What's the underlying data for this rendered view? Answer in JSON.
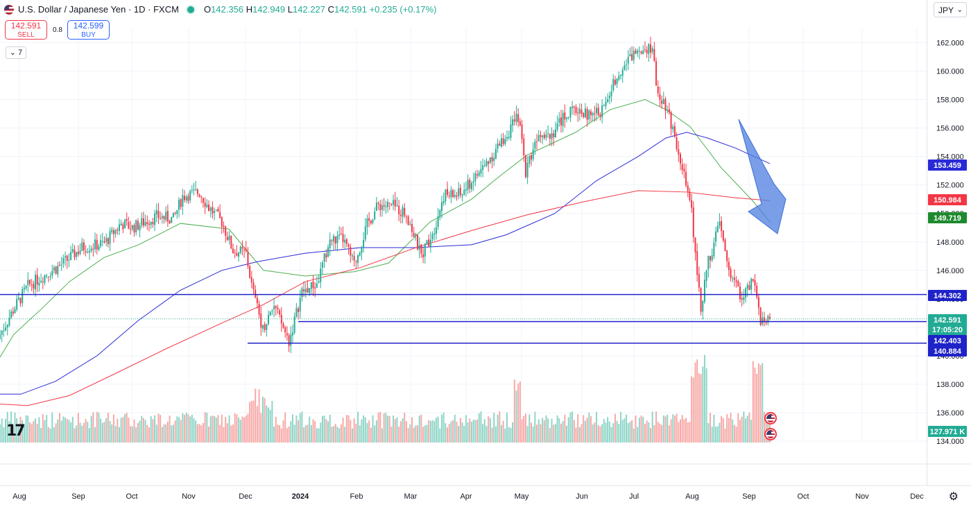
{
  "header": {
    "title": "U.S. Dollar / Japanese Yen · 1D · FXCM",
    "open_label": "O",
    "open": "142.356",
    "high_label": "H",
    "high": "142.949",
    "low_label": "L",
    "low": "142.227",
    "close_label": "C",
    "close": "142.591",
    "change": "+0.235 (+0.17%)"
  },
  "trade": {
    "sell_price": "142.591",
    "sell_label": "SELL",
    "buy_price": "142.599",
    "buy_label": "BUY",
    "spread": "0.8"
  },
  "indicators_toggle": "⌄ 7",
  "currency_menu": "JPY",
  "logo_text": "17",
  "settings_icon": "gear-icon",
  "colors": {
    "up": "#22ab94",
    "down": "#f23645",
    "ma_short": "#4caf50",
    "ma_mid": "#2929d8",
    "ma_long": "#f23645",
    "hline": "#1e22c8",
    "arrow": "#4d7fe0"
  },
  "chart_data": {
    "type": "candlestick",
    "instrument": "U.S. Dollar / Japanese Yen",
    "interval": "1D",
    "y_range": [
      134,
      162.7
    ],
    "y_ticks": [
      "162.000",
      "160.000",
      "158.000",
      "156.000",
      "154.000",
      "152.000",
      "150.000",
      "148.000",
      "146.000",
      "144.000",
      "142.000",
      "140.000",
      "138.000",
      "136.000",
      "134.000"
    ],
    "x_ticks": [
      "Aug",
      "Sep",
      "Oct",
      "Nov",
      "Dec",
      "2024",
      "Feb",
      "Mar",
      "Apr",
      "May",
      "Jun",
      "Jul",
      "Aug",
      "Sep",
      "Oct",
      "Nov",
      "Dec"
    ],
    "price_path": [
      [
        "2023-07-26",
        141.5
      ],
      [
        "2023-08-02",
        143.2
      ],
      [
        "2023-08-10",
        144.9
      ],
      [
        "2023-08-18",
        145.6
      ],
      [
        "2023-08-28",
        146.4
      ],
      [
        "2023-09-08",
        147.6
      ],
      [
        "2023-09-20",
        147.9
      ],
      [
        "2023-09-29",
        149.3
      ],
      [
        "2023-10-05",
        149.0
      ],
      [
        "2023-10-18",
        149.8
      ],
      [
        "2023-10-27",
        149.6
      ],
      [
        "2023-11-01",
        151.2
      ],
      [
        "2023-11-10",
        151.5
      ],
      [
        "2023-11-15",
        150.4
      ],
      [
        "2023-11-22",
        149.4
      ],
      [
        "2023-11-28",
        147.4
      ],
      [
        "2023-12-05",
        147.2
      ],
      [
        "2023-12-08",
        144.9
      ],
      [
        "2023-12-14",
        141.9
      ],
      [
        "2023-12-20",
        143.5
      ],
      [
        "2023-12-28",
        141.0
      ],
      [
        "2024-01-04",
        144.5
      ],
      [
        "2024-01-12",
        145.0
      ],
      [
        "2024-01-19",
        148.1
      ],
      [
        "2024-01-26",
        148.2
      ],
      [
        "2024-02-01",
        146.4
      ],
      [
        "2024-02-08",
        149.2
      ],
      [
        "2024-02-14",
        150.6
      ],
      [
        "2024-02-22",
        150.5
      ],
      [
        "2024-02-29",
        150.0
      ],
      [
        "2024-03-08",
        147.0
      ],
      [
        "2024-03-15",
        149.0
      ],
      [
        "2024-03-20",
        151.3
      ],
      [
        "2024-03-29",
        151.3
      ],
      [
        "2024-04-10",
        153.2
      ],
      [
        "2024-04-18",
        154.6
      ],
      [
        "2024-04-29",
        156.8
      ],
      [
        "2024-05-03",
        153.0
      ],
      [
        "2024-05-10",
        155.8
      ],
      [
        "2024-05-17",
        155.6
      ],
      [
        "2024-05-24",
        156.9
      ],
      [
        "2024-05-31",
        157.3
      ],
      [
        "2024-06-07",
        156.8
      ],
      [
        "2024-06-14",
        157.4
      ],
      [
        "2024-06-21",
        159.8
      ],
      [
        "2024-06-28",
        160.9
      ],
      [
        "2024-07-03",
        161.7
      ],
      [
        "2024-07-10",
        161.7
      ],
      [
        "2024-07-12",
        158.9
      ],
      [
        "2024-07-18",
        157.4
      ],
      [
        "2024-07-25",
        153.9
      ],
      [
        "2024-07-31",
        150.0
      ],
      [
        "2024-08-05",
        143.5
      ],
      [
        "2024-08-09",
        146.6
      ],
      [
        "2024-08-15",
        149.3
      ],
      [
        "2024-08-20",
        146.0
      ],
      [
        "2024-08-27",
        144.1
      ],
      [
        "2024-09-03",
        145.3
      ],
      [
        "2024-09-06",
        142.3
      ],
      [
        "2024-09-11",
        142.6
      ]
    ],
    "moving_averages": [
      {
        "values": [
          [
            141.5,
            143.3,
            145.2,
            146.9,
            147.8,
            149.3,
            148.9,
            146.0,
            145.6,
            145.9,
            146.5,
            149.4,
            151.0,
            152.6,
            154.1,
            155.7,
            157.3,
            158.0,
            156.1,
            150.9,
            149.4
          ]
        ]
      },
      {
        "values": [
          [
            137.3,
            138.2,
            140.0,
            142.5,
            144.6,
            146.0,
            146.6,
            147.2,
            147.6,
            147.6,
            147.8,
            148.5,
            150.0,
            152.3,
            154.0,
            155.3,
            155.7,
            155.3,
            154.6,
            153.5
          ]
        ]
      },
      {
        "values": [
          [
            136.6,
            136.5,
            137.2,
            138.6,
            140.5,
            142.3,
            143.6,
            145.2,
            146.2,
            147.6,
            148.8,
            149.9,
            150.8,
            151.6,
            151.5,
            151.1,
            150.9
          ]
        ]
      }
    ],
    "price_labels": [
      {
        "value": "153.459",
        "color": "#2929d8"
      },
      {
        "value": "150.984",
        "color": "#f23645"
      },
      {
        "value": "149.719",
        "color": "#1e8a2e"
      },
      {
        "value": "144.302",
        "color": "#1e22c8"
      },
      {
        "value": "142.591",
        "color": "#22ab94"
      },
      {
        "value": "17:05:20",
        "color": "#22ab94"
      },
      {
        "value": "142.403",
        "color": "#1e22c8"
      },
      {
        "value": "140.884",
        "color": "#1e22c8"
      },
      {
        "value": "127.971 K",
        "color": "#22ab94"
      }
    ],
    "horizontal_levels": [
      144.302,
      142.403,
      140.884
    ],
    "last_price": 142.591,
    "countdown": "17:05:20",
    "volume_last": "127.971 K"
  }
}
